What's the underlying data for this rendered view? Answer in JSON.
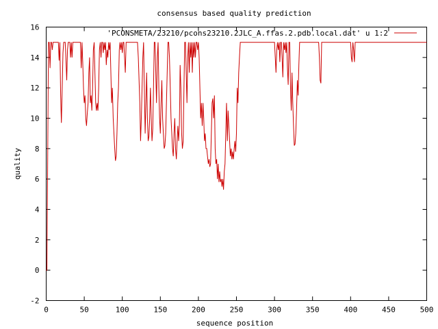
{
  "chart_data": {
    "type": "line",
    "title": "consensus based quality prediction",
    "xlabel": "sequence position",
    "ylabel": "quality",
    "xlim": [
      0,
      500
    ],
    "ylim": [
      -2,
      16
    ],
    "xticks": [
      0,
      50,
      100,
      150,
      200,
      250,
      300,
      350,
      400,
      450,
      500
    ],
    "yticks": [
      -2,
      0,
      2,
      4,
      6,
      8,
      10,
      12,
      14,
      16
    ],
    "grid": false,
    "legend_position": "top-right",
    "series": [
      {
        "name": "'PCONSMETA/23210/pcons23210.2JLC_A.ffas.2.pdb.local.dat' u 1:2",
        "color": "#cc0000",
        "points": [
          [
            0,
            0
          ],
          [
            1,
            0
          ],
          [
            2,
            7.5
          ],
          [
            3,
            15
          ],
          [
            4,
            15
          ],
          [
            5,
            13.3
          ],
          [
            6,
            15
          ],
          [
            7,
            15
          ],
          [
            8,
            14.5
          ],
          [
            9,
            15
          ],
          [
            10,
            15
          ],
          [
            12,
            15
          ],
          [
            14,
            15
          ],
          [
            16,
            15
          ],
          [
            17,
            13.8
          ],
          [
            18,
            15
          ],
          [
            19,
            11.5
          ],
          [
            20,
            9.7
          ],
          [
            21,
            12
          ],
          [
            22,
            14.3
          ],
          [
            23,
            15
          ],
          [
            25,
            15
          ],
          [
            26,
            13.8
          ],
          [
            27,
            12.5
          ],
          [
            28,
            14.5
          ],
          [
            29,
            15
          ],
          [
            31,
            15
          ],
          [
            32,
            14
          ],
          [
            33,
            15
          ],
          [
            34,
            14
          ],
          [
            35,
            15
          ],
          [
            40,
            15
          ],
          [
            45,
            15
          ],
          [
            46,
            13.3
          ],
          [
            47,
            15
          ],
          [
            48,
            13.7
          ],
          [
            49,
            12
          ],
          [
            50,
            11
          ],
          [
            51,
            11.5
          ],
          [
            52,
            10
          ],
          [
            53,
            9.5
          ],
          [
            54,
            10.3
          ],
          [
            55,
            11
          ],
          [
            56,
            13
          ],
          [
            57,
            14
          ],
          [
            58,
            11
          ],
          [
            59,
            11.5
          ],
          [
            60,
            10.5
          ],
          [
            61,
            12
          ],
          [
            62,
            14.5
          ],
          [
            63,
            15
          ],
          [
            64,
            13
          ],
          [
            65,
            11
          ],
          [
            66,
            10.5
          ],
          [
            67,
            11
          ],
          [
            68,
            10.5
          ],
          [
            69,
            12
          ],
          [
            70,
            14.5
          ],
          [
            71,
            15
          ],
          [
            72,
            14
          ],
          [
            73,
            15
          ],
          [
            74,
            15
          ],
          [
            75,
            14.3
          ],
          [
            76,
            15
          ],
          [
            77,
            14.5
          ],
          [
            78,
            15
          ],
          [
            79,
            13.5
          ],
          [
            80,
            14.5
          ],
          [
            81,
            14
          ],
          [
            82,
            15
          ],
          [
            83,
            14.5
          ],
          [
            84,
            15
          ],
          [
            85,
            13
          ],
          [
            86,
            11
          ],
          [
            87,
            12
          ],
          [
            88,
            10
          ],
          [
            89,
            9
          ],
          [
            90,
            8
          ],
          [
            91,
            7.2
          ],
          [
            92,
            7.5
          ],
          [
            93,
            9
          ],
          [
            94,
            11
          ],
          [
            95,
            12
          ],
          [
            96,
            14.5
          ],
          [
            97,
            15
          ],
          [
            98,
            14.5
          ],
          [
            99,
            15
          ],
          [
            100,
            14.3
          ],
          [
            101,
            15
          ],
          [
            102,
            15
          ],
          [
            103,
            14
          ],
          [
            104,
            13
          ],
          [
            105,
            15
          ],
          [
            110,
            15
          ],
          [
            115,
            15
          ],
          [
            120,
            15
          ],
          [
            121,
            14
          ],
          [
            122,
            12.5
          ],
          [
            123,
            11
          ],
          [
            124,
            8.5
          ],
          [
            125,
            10
          ],
          [
            126,
            12
          ],
          [
            127,
            14
          ],
          [
            128,
            15
          ],
          [
            129,
            12
          ],
          [
            130,
            9
          ],
          [
            131,
            11
          ],
          [
            132,
            13
          ],
          [
            133,
            10
          ],
          [
            134,
            8.5
          ],
          [
            135,
            8.8
          ],
          [
            136,
            10
          ],
          [
            137,
            12
          ],
          [
            138,
            10
          ],
          [
            139,
            8.5
          ],
          [
            140,
            9.3
          ],
          [
            141,
            12
          ],
          [
            142,
            15
          ],
          [
            143,
            15
          ],
          [
            144,
            13
          ],
          [
            145,
            11
          ],
          [
            146,
            14
          ],
          [
            147,
            15
          ],
          [
            148,
            12
          ],
          [
            149,
            10
          ],
          [
            150,
            9
          ],
          [
            151,
            11
          ],
          [
            152,
            12.5
          ],
          [
            153,
            10
          ],
          [
            154,
            9
          ],
          [
            155,
            8
          ],
          [
            156,
            8.2
          ],
          [
            157,
            9
          ],
          [
            158,
            11
          ],
          [
            159,
            13
          ],
          [
            160,
            15
          ],
          [
            161,
            15
          ],
          [
            162,
            14
          ],
          [
            163,
            12
          ],
          [
            164,
            10
          ],
          [
            165,
            9
          ],
          [
            166,
            8
          ],
          [
            167,
            7.5
          ],
          [
            168,
            9
          ],
          [
            169,
            10
          ],
          [
            170,
            8
          ],
          [
            171,
            7.3
          ],
          [
            172,
            8.5
          ],
          [
            173,
            9.5
          ],
          [
            174,
            8.5
          ],
          [
            175,
            9.5
          ],
          [
            176,
            13.5
          ],
          [
            177,
            12
          ],
          [
            178,
            9
          ],
          [
            179,
            8
          ],
          [
            180,
            8.5
          ],
          [
            181,
            12
          ],
          [
            182,
            15
          ],
          [
            183,
            15
          ],
          [
            184,
            13
          ],
          [
            185,
            11
          ],
          [
            186,
            14
          ],
          [
            187,
            15
          ],
          [
            188,
            13
          ],
          [
            189,
            15
          ],
          [
            190,
            14
          ],
          [
            191,
            15
          ],
          [
            192,
            13
          ],
          [
            193,
            15
          ],
          [
            194,
            14
          ],
          [
            195,
            15
          ],
          [
            196,
            14
          ],
          [
            197,
            15
          ],
          [
            198,
            15
          ],
          [
            199,
            14.5
          ],
          [
            200,
            15
          ],
          [
            201,
            14
          ],
          [
            202,
            12
          ],
          [
            203,
            10
          ],
          [
            204,
            11
          ],
          [
            205,
            9.5
          ],
          [
            206,
            11
          ],
          [
            207,
            10
          ],
          [
            208,
            8.5
          ],
          [
            209,
            9
          ],
          [
            210,
            8
          ],
          [
            211,
            8
          ],
          [
            212,
            7.5
          ],
          [
            213,
            7
          ],
          [
            214,
            7.3
          ],
          [
            215,
            6.8
          ],
          [
            216,
            7
          ],
          [
            217,
            9
          ],
          [
            218,
            11
          ],
          [
            219,
            11.3
          ],
          [
            220,
            10
          ],
          [
            221,
            11.5
          ],
          [
            222,
            8
          ],
          [
            223,
            7
          ],
          [
            224,
            7.3
          ],
          [
            225,
            6
          ],
          [
            226,
            7
          ],
          [
            227,
            5.8
          ],
          [
            228,
            6.5
          ],
          [
            229,
            5.8
          ],
          [
            230,
            6
          ],
          [
            231,
            5.5
          ],
          [
            232,
            6
          ],
          [
            233,
            5.3
          ],
          [
            234,
            6.5
          ],
          [
            235,
            7
          ],
          [
            236,
            9
          ],
          [
            237,
            11
          ],
          [
            238,
            8.5
          ],
          [
            239,
            10.5
          ],
          [
            240,
            9.5
          ],
          [
            241,
            8.5
          ],
          [
            242,
            7.5
          ],
          [
            243,
            8
          ],
          [
            244,
            7.3
          ],
          [
            245,
            7.8
          ],
          [
            246,
            7.3
          ],
          [
            247,
            8
          ],
          [
            248,
            8.5
          ],
          [
            249,
            7.8
          ],
          [
            250,
            9
          ],
          [
            251,
            12
          ],
          [
            252,
            11
          ],
          [
            253,
            13
          ],
          [
            254,
            14
          ],
          [
            255,
            15
          ],
          [
            256,
            15
          ],
          [
            260,
            15
          ],
          [
            270,
            15
          ],
          [
            280,
            15
          ],
          [
            290,
            15
          ],
          [
            300,
            15
          ],
          [
            301,
            14
          ],
          [
            302,
            13
          ],
          [
            303,
            14.5
          ],
          [
            304,
            15
          ],
          [
            305,
            14.5
          ],
          [
            306,
            15
          ],
          [
            307,
            13.7
          ],
          [
            308,
            15
          ],
          [
            309,
            15
          ],
          [
            310,
            14
          ],
          [
            311,
            12.7
          ],
          [
            312,
            15
          ],
          [
            313,
            14.5
          ],
          [
            314,
            15
          ],
          [
            315,
            14.3
          ],
          [
            316,
            15
          ],
          [
            317,
            13.3
          ],
          [
            318,
            12.2
          ],
          [
            319,
            15
          ],
          [
            320,
            15
          ],
          [
            321,
            12
          ],
          [
            322,
            10.5
          ],
          [
            323,
            13
          ],
          [
            324,
            11
          ],
          [
            325,
            9.5
          ],
          [
            326,
            8.2
          ],
          [
            327,
            8.3
          ],
          [
            328,
            9
          ],
          [
            329,
            10.5
          ],
          [
            330,
            12.5
          ],
          [
            331,
            11.5
          ],
          [
            332,
            13.5
          ],
          [
            333,
            15
          ],
          [
            334,
            15
          ],
          [
            340,
            15
          ],
          [
            350,
            15
          ],
          [
            358,
            15
          ],
          [
            359,
            14
          ],
          [
            360,
            12.5
          ],
          [
            361,
            12.3
          ],
          [
            362,
            15
          ],
          [
            370,
            15
          ],
          [
            380,
            15
          ],
          [
            390,
            15
          ],
          [
            400,
            15
          ],
          [
            401,
            14
          ],
          [
            402,
            13.7
          ],
          [
            403,
            15
          ],
          [
            404,
            14.5
          ],
          [
            405,
            13.7
          ],
          [
            406,
            15
          ],
          [
            410,
            15
          ],
          [
            420,
            15
          ],
          [
            440,
            15
          ],
          [
            460,
            15
          ],
          [
            480,
            15
          ],
          [
            500,
            15
          ]
        ]
      }
    ]
  }
}
